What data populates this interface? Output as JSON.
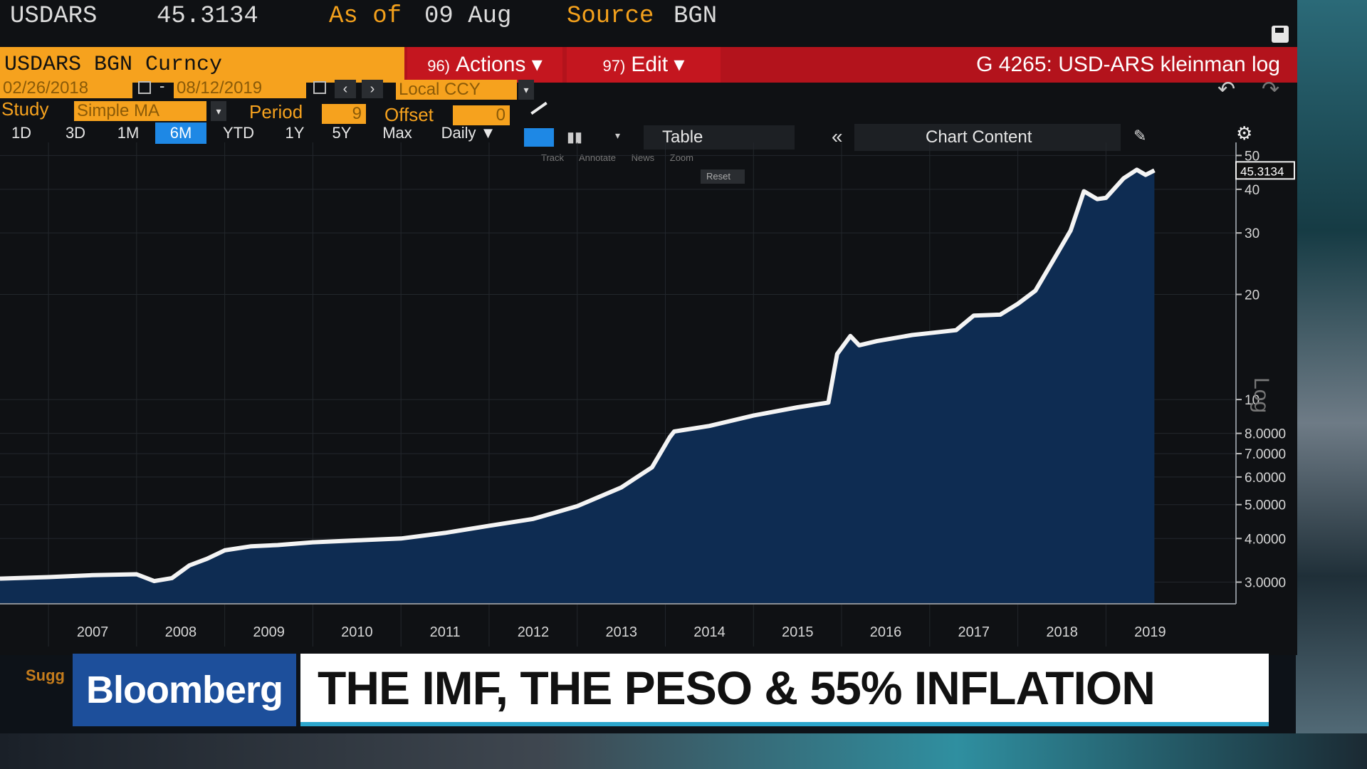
{
  "quote": {
    "ticker": "USDARS",
    "last": "45.3134",
    "asof_label": "As of",
    "asof_date": "09 Aug",
    "source_label": "Source",
    "source_value": "BGN"
  },
  "title_bar": {
    "security": "USDARS BGN Curncy",
    "actions_num": "96)",
    "actions_label": "Actions ▾",
    "edit_num": "97)",
    "edit_label": "Edit ▾",
    "graph_title": "G 4265: USD-ARS kleinman log"
  },
  "date_row": {
    "start_date": "02/26/2018",
    "separator": "-",
    "end_date": "08/12/2019",
    "currency": "Local CCY"
  },
  "study_row": {
    "study_label": "Study",
    "study_value": "Simple MA",
    "period_label": "Period",
    "period_value": "9",
    "offset_label": "Offset",
    "offset_value": "0"
  },
  "range_buttons": [
    "1D",
    "3D",
    "1M",
    "6M",
    "YTD",
    "1Y",
    "5Y",
    "Max"
  ],
  "active_range": "6M",
  "frequency": "Daily ▼",
  "table_label": "Table",
  "chart_content_label": "Chart Content",
  "chart_tools": [
    "Track",
    "Annotate",
    "News",
    "Zoom"
  ],
  "reset_label": "Reset",
  "colors": {
    "bloomberg_orange": "#f6a21e",
    "title_red": "#b3131c",
    "active_blue": "#1e88e5",
    "area_fill": "#0e2c52",
    "line": "#f4f4f4",
    "logo_blue": "#1d4f9b",
    "headline_accent": "#2da6cc"
  },
  "chart_data": {
    "type": "area",
    "title": "G 4265: USD-ARS kleinman log",
    "y_scale": "log",
    "y_axis_label": "Log",
    "ylim": [
      2.6,
      52
    ],
    "last_value_label": "45.3134",
    "y_ticks": [
      {
        "value": 3,
        "label": "3.0000"
      },
      {
        "value": 4,
        "label": "4.0000"
      },
      {
        "value": 5,
        "label": "5.0000"
      },
      {
        "value": 6,
        "label": "6.0000"
      },
      {
        "value": 7,
        "label": "7.0000"
      },
      {
        "value": 8,
        "label": "8.0000"
      },
      {
        "value": 10,
        "label": "10"
      },
      {
        "value": 20,
        "label": "20"
      },
      {
        "value": 30,
        "label": "30"
      },
      {
        "value": 40,
        "label": "40"
      },
      {
        "value": 50,
        "label": "50"
      }
    ],
    "x_labels": [
      {
        "year": 2007.0,
        "label": "2007"
      },
      {
        "year": 2008.0,
        "label": "2008"
      },
      {
        "year": 2009.0,
        "label": "2009"
      },
      {
        "year": 2010.0,
        "label": "2010"
      },
      {
        "year": 2011.0,
        "label": "2011"
      },
      {
        "year": 2012.0,
        "label": "2012"
      },
      {
        "year": 2013.0,
        "label": "2013"
      },
      {
        "year": 2014.0,
        "label": "2014"
      },
      {
        "year": 2015.0,
        "label": "2015"
      },
      {
        "year": 2016.0,
        "label": "2016"
      },
      {
        "year": 2017.0,
        "label": "2017"
      },
      {
        "year": 2018.0,
        "label": "2018"
      },
      {
        "year": 2019.0,
        "label": "2019"
      }
    ],
    "xlim": [
      2006.45,
      2019.7
    ],
    "series": [
      {
        "name": "USD-ARS",
        "points": [
          [
            2006.45,
            3.07
          ],
          [
            2007.0,
            3.1
          ],
          [
            2007.5,
            3.14
          ],
          [
            2008.0,
            3.16
          ],
          [
            2008.2,
            3.02
          ],
          [
            2008.4,
            3.08
          ],
          [
            2008.6,
            3.35
          ],
          [
            2008.8,
            3.5
          ],
          [
            2009.0,
            3.7
          ],
          [
            2009.3,
            3.8
          ],
          [
            2009.6,
            3.83
          ],
          [
            2010.0,
            3.9
          ],
          [
            2010.5,
            3.95
          ],
          [
            2011.0,
            4.0
          ],
          [
            2011.5,
            4.15
          ],
          [
            2012.0,
            4.35
          ],
          [
            2012.5,
            4.55
          ],
          [
            2013.0,
            4.95
          ],
          [
            2013.5,
            5.6
          ],
          [
            2013.85,
            6.4
          ],
          [
            2014.05,
            7.8
          ],
          [
            2014.1,
            8.1
          ],
          [
            2014.5,
            8.4
          ],
          [
            2015.0,
            9.0
          ],
          [
            2015.5,
            9.5
          ],
          [
            2015.85,
            9.8
          ],
          [
            2015.95,
            13.5
          ],
          [
            2016.1,
            15.2
          ],
          [
            2016.2,
            14.3
          ],
          [
            2016.4,
            14.7
          ],
          [
            2016.8,
            15.3
          ],
          [
            2017.0,
            15.5
          ],
          [
            2017.3,
            15.8
          ],
          [
            2017.5,
            17.4
          ],
          [
            2017.8,
            17.5
          ],
          [
            2018.0,
            18.8
          ],
          [
            2018.2,
            20.5
          ],
          [
            2018.4,
            25.0
          ],
          [
            2018.6,
            30.5
          ],
          [
            2018.75,
            39.5
          ],
          [
            2018.9,
            37.5
          ],
          [
            2019.0,
            37.8
          ],
          [
            2019.2,
            43.0
          ],
          [
            2019.35,
            45.5
          ],
          [
            2019.45,
            44.0
          ],
          [
            2019.55,
            45.3134
          ]
        ]
      }
    ]
  },
  "lower_third": {
    "suggest_label": "Sugg",
    "logo": "Bloomberg",
    "headline": "THE IMF, THE PESO & 55% INFLATION"
  }
}
